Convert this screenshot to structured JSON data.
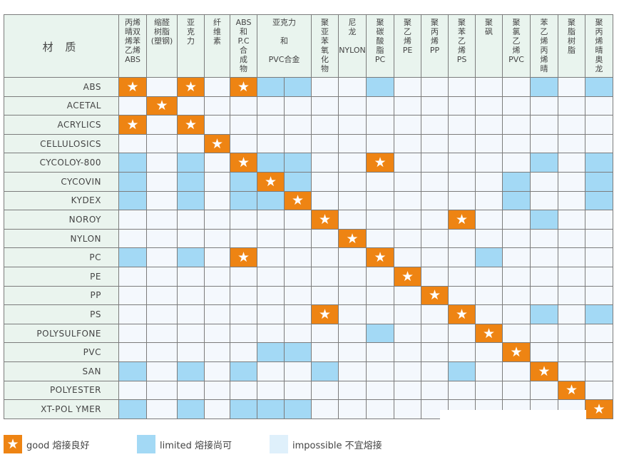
{
  "corner_label": "材 质",
  "colors": {
    "good": "#ee8413",
    "limited": "#a3d9f5",
    "impossible": "#f4f8fd",
    "legend_impossible": "#dff0fb",
    "header": "#e9f4ee"
  },
  "chart_data": {
    "type": "table",
    "title": "",
    "columns": [
      {
        "label": "丙烯\n晴双\n烯苯\n乙烯\nABS",
        "span": 1
      },
      {
        "label": "缩醛\n树脂\n(塑钢)",
        "span": 1
      },
      {
        "label": "亚\n克\n力",
        "span": 1
      },
      {
        "label": "纤\n维\n素",
        "span": 1
      },
      {
        "label": "ABS\n和\nP.C\n合\n成\n物",
        "span": 1
      },
      {
        "label": "亚克力\n\n和\n\nPVC合金",
        "span": 2
      },
      {
        "label": "聚\n亚\n苯\n氧\n化\n物",
        "span": 1
      },
      {
        "label": "尼\n龙\n\nNYLON",
        "span": 1
      },
      {
        "label": "聚\n碳\n酸\n脂\nPC",
        "span": 1
      },
      {
        "label": "聚\n乙\n烯\nPE",
        "span": 1
      },
      {
        "label": "聚\n丙\n烯\nPP",
        "span": 1
      },
      {
        "label": "聚\n苯\n乙\n烯\nPS",
        "span": 1
      },
      {
        "label": "聚\n砜",
        "span": 1
      },
      {
        "label": "聚\n氯\n乙\n烯\nPVC",
        "span": 1
      },
      {
        "label": "苯\n乙\n烯\n丙\n烯\n晴",
        "span": 1
      },
      {
        "label": "聚\n脂\n树\n脂",
        "span": 1
      },
      {
        "label": "聚\n丙\n烯\n晴\n奥\n龙",
        "span": 1
      }
    ],
    "rows": [
      {
        "label": "ABS",
        "cells": "G.G.GLL..L.....L.L"
      },
      {
        "label": "ACETAL",
        "cells": ".G................"
      },
      {
        "label": "ACRYLICS",
        "cells": "G.G..............."
      },
      {
        "label": "CELLULOSICS",
        "cells": "...G.............."
      },
      {
        "label": "CYCOLOY-800",
        "cells": "L.L.GLL..G.....L.L"
      },
      {
        "label": "CYCOVIN",
        "cells": "L.L.LGL.......L..L"
      },
      {
        "label": "KYDEX",
        "cells": "L.L.LLG.......L..L"
      },
      {
        "label": "NOROY",
        "cells": ".......G....G..L.."
      },
      {
        "label": "NYLON",
        "cells": "........G........."
      },
      {
        "label": "PC",
        "cells": "L.L.G....G...L...."
      },
      {
        "label": "PE",
        "cells": "..........G......."
      },
      {
        "label": "PP",
        "cells": "...........G......"
      },
      {
        "label": "PS",
        "cells": ".......G....G..L.L"
      },
      {
        "label": "POLYSULFONE",
        "cells": ".........L...G...."
      },
      {
        "label": "PVC",
        "cells": ".....LL.......G..."
      },
      {
        "label": "SAN",
        "cells": "L.L.L..L....L..G.."
      },
      {
        "label": "POLYESTER",
        "cells": "................G."
      },
      {
        "label": "XT-POL YMER",
        "cells": "L.L.LLL..........G"
      }
    ],
    "legend": [
      {
        "key": "G",
        "label": "good 熔接良好"
      },
      {
        "key": "L",
        "label": "limited 熔接尚可"
      },
      {
        "key": ".",
        "label": "impossible 不宜熔接"
      }
    ],
    "legend_placement": "bottom"
  }
}
